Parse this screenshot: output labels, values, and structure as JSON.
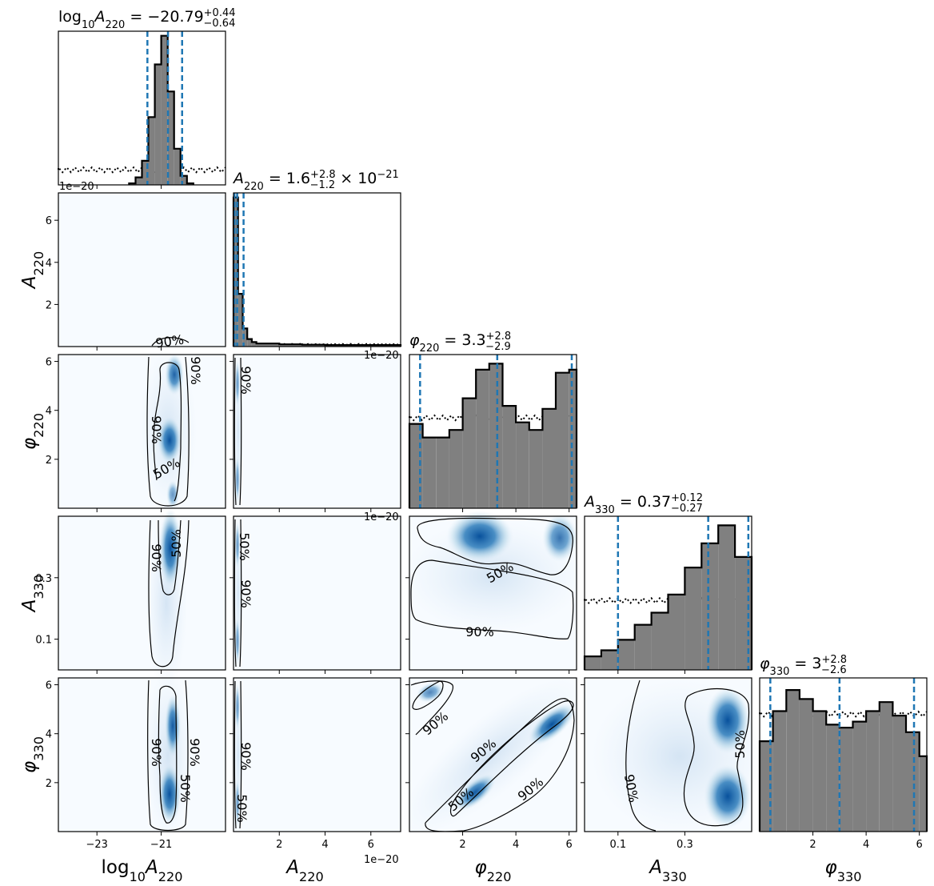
{
  "chart_data": {
    "type": "corner",
    "parameters": [
      {
        "id": "log10A220",
        "label": "log10A220",
        "range": [
          -24.2,
          -19.0
        ]
      },
      {
        "id": "A220",
        "label": "A220",
        "range": [
          0.0,
          7.3e-20
        ]
      },
      {
        "id": "phi220",
        "label": "φ220",
        "range": [
          0.0,
          6.28
        ]
      },
      {
        "id": "A330",
        "label": "A330",
        "range": [
          0.0,
          0.5
        ]
      },
      {
        "id": "phi330",
        "label": "φ330",
        "range": [
          0.0,
          6.28
        ]
      }
    ],
    "titles": [
      {
        "text": "log10A220 = −20.79 (+0.44 / −0.64)",
        "median": -20.79,
        "plus": 0.44,
        "minus": 0.64
      },
      {
        "text": "A220 = 1.6 (+2.8 / −1.2) × 10^−21",
        "median": 1.6e-21,
        "plus": 2.8e-21,
        "minus": 1.2e-21
      },
      {
        "text": "φ220 = 3.3 (+2.8 / −2.9)",
        "median": 3.3,
        "plus": 2.8,
        "minus": 2.9
      },
      {
        "text": "A330 = 0.37 (+0.12 / −0.27)",
        "median": 0.37,
        "plus": 0.12,
        "minus": 0.27
      },
      {
        "text": "φ330 = 3 (+2.8 / −2.6)",
        "median": 3.0,
        "plus": 2.8,
        "minus": 2.6
      }
    ],
    "quantile_lines": [
      [
        -21.43,
        -20.79,
        -20.35
      ],
      [
        4e-22,
        1.6e-21,
        4.4e-21
      ],
      [
        0.4,
        3.3,
        6.1
      ],
      [
        0.1,
        0.37,
        0.49
      ],
      [
        0.4,
        3.0,
        5.8
      ]
    ],
    "x_ticks": [
      {
        "values": [
          -23,
          -21
        ],
        "labels": [
          "−23",
          "−21"
        ]
      },
      {
        "values": [
          2e-20,
          4e-20,
          6e-20
        ],
        "labels": [
          "2",
          "4",
          "6"
        ],
        "offset": "1e−20"
      },
      {
        "values": [
          2,
          4,
          6
        ],
        "labels": [
          "2",
          "4",
          "6"
        ]
      },
      {
        "values": [
          0.1,
          0.3
        ],
        "labels": [
          "0.1",
          "0.3"
        ]
      },
      {
        "values": [
          2,
          4,
          6
        ],
        "labels": [
          "2",
          "4",
          "6"
        ]
      }
    ],
    "y_ticks": [
      null,
      {
        "values": [
          2e-20,
          4e-20,
          6e-20
        ],
        "labels": [
          "2",
          "4",
          "6"
        ],
        "offset": "1e−20"
      },
      {
        "values": [
          2,
          4,
          6
        ],
        "labels": [
          "2",
          "4",
          "6"
        ]
      },
      {
        "values": [
          0.1,
          0.3
        ],
        "labels": [
          "0.1",
          "0.3"
        ]
      },
      {
        "values": [
          2,
          4,
          6
        ],
        "labels": [
          "2",
          "4",
          "6"
        ]
      }
    ],
    "offset_labels": [
      "1e−20",
      "1e−20",
      "1e−20",
      "1e−20"
    ],
    "contour_levels": [
      "50%",
      "90%"
    ],
    "posterior_histograms": [
      {
        "param": "log10A220",
        "bin_edges": [
          -22.0,
          -21.8,
          -21.6,
          -21.4,
          -21.2,
          -21.0,
          -20.8,
          -20.6,
          -20.4,
          -20.2,
          -20.0
        ],
        "density": [
          0.01,
          0.05,
          0.16,
          0.45,
          0.8,
          0.99,
          0.62,
          0.24,
          0.06,
          0.01
        ]
      },
      {
        "param": "A220",
        "bin_edges": [
          0.0,
          2e-21,
          4e-21,
          6e-21,
          8e-21,
          1e-20,
          2e-20,
          3e-20,
          4e-20,
          5e-20,
          6e-20,
          7.3e-20
        ],
        "density": [
          0.99,
          0.35,
          0.12,
          0.05,
          0.03,
          0.02,
          0.015,
          0.012,
          0.01,
          0.01,
          0.01
        ]
      },
      {
        "param": "phi220",
        "bin_edges": [
          0.0,
          0.5,
          1.0,
          1.5,
          2.0,
          2.5,
          3.0,
          3.5,
          4.0,
          4.5,
          5.0,
          5.5,
          6.0,
          6.28
        ],
        "density": [
          0.56,
          0.47,
          0.47,
          0.52,
          0.73,
          0.92,
          0.96,
          0.68,
          0.57,
          0.52,
          0.66,
          0.9,
          0.92
        ]
      },
      {
        "param": "A330",
        "bin_edges": [
          0.0,
          0.05,
          0.1,
          0.15,
          0.2,
          0.25,
          0.3,
          0.35,
          0.4,
          0.45,
          0.5
        ],
        "density": [
          0.09,
          0.13,
          0.2,
          0.3,
          0.38,
          0.5,
          0.68,
          0.84,
          0.96,
          0.75
        ]
      },
      {
        "param": "phi330",
        "bin_edges": [
          0.0,
          0.5,
          1.0,
          1.5,
          2.0,
          2.5,
          3.0,
          3.5,
          4.0,
          4.5,
          5.0,
          5.5,
          6.0,
          6.28
        ],
        "density": [
          0.6,
          0.8,
          0.94,
          0.88,
          0.8,
          0.71,
          0.69,
          0.73,
          0.8,
          0.86,
          0.77,
          0.66,
          0.5
        ]
      }
    ],
    "prior_levels": [
      0.1,
      0.015,
      0.6,
      0.46,
      0.78
    ],
    "pairs": [
      {
        "x": "log10A220",
        "y": "A220"
      },
      {
        "x": "log10A220",
        "y": "phi220"
      },
      {
        "x": "A220",
        "y": "phi220"
      },
      {
        "x": "log10A220",
        "y": "A330"
      },
      {
        "x": "A220",
        "y": "A330"
      },
      {
        "x": "phi220",
        "y": "A330"
      },
      {
        "x": "log10A220",
        "y": "phi330"
      },
      {
        "x": "A220",
        "y": "phi330"
      },
      {
        "x": "phi220",
        "y": "phi330"
      },
      {
        "x": "A330",
        "y": "phi330"
      }
    ],
    "colors": {
      "posterior_fill": "#808080",
      "outline": "#000000",
      "quantile": "#1f77b4",
      "density_low": "#f7fbff",
      "density_high": "#08519c"
    },
    "grid": false
  }
}
